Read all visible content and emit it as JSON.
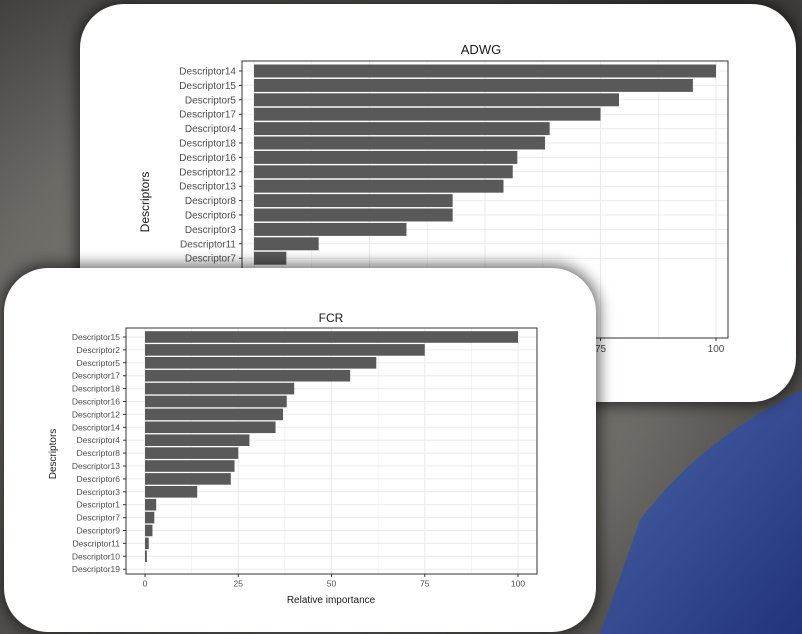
{
  "chart_data": [
    {
      "type": "bar",
      "orientation": "horizontal",
      "title": "ADWG",
      "xlabel": "",
      "ylabel": "Descriptors",
      "xlim": [
        0,
        100
      ],
      "x_ticks_visible": [
        "75",
        "100"
      ],
      "grid": true,
      "categories": [
        "Descriptor14",
        "Descriptor15",
        "Descriptor5",
        "Descriptor17",
        "Descriptor4",
        "Descriptor18",
        "Descriptor16",
        "Descriptor12",
        "Descriptor13",
        "Descriptor8",
        "Descriptor6",
        "Descriptor3",
        "Descriptor11",
        "Descriptor7"
      ],
      "values": [
        100,
        95,
        79,
        75,
        64,
        63,
        57,
        56,
        54,
        43,
        43,
        33,
        14,
        7
      ]
    },
    {
      "type": "bar",
      "orientation": "horizontal",
      "title": "FCR",
      "xlabel": "Relative importance",
      "ylabel": "Descriptors",
      "xlim": [
        0,
        100
      ],
      "x_ticks": [
        "0",
        "25",
        "50",
        "75",
        "100"
      ],
      "grid": true,
      "categories": [
        "Descriptor15",
        "Descriptor2",
        "Descriptor5",
        "Descriptor17",
        "Descriptor18",
        "Descriptor16",
        "Descriptor12",
        "Descriptor14",
        "Descriptor4",
        "Descriptor8",
        "Descriptor13",
        "Descriptor6",
        "Descriptor3",
        "Descriptor1",
        "Descriptor7",
        "Descriptor9",
        "Descriptor11",
        "Descriptor10",
        "Descriptor19"
      ],
      "values": [
        100,
        75,
        62,
        55,
        40,
        38,
        37,
        35,
        28,
        25,
        24,
        23,
        14,
        3,
        2.5,
        2,
        1,
        0.5,
        0
      ]
    }
  ],
  "colors": {
    "bar": "#595959",
    "panel_border": "#333333",
    "grid": "#ebebeb"
  }
}
